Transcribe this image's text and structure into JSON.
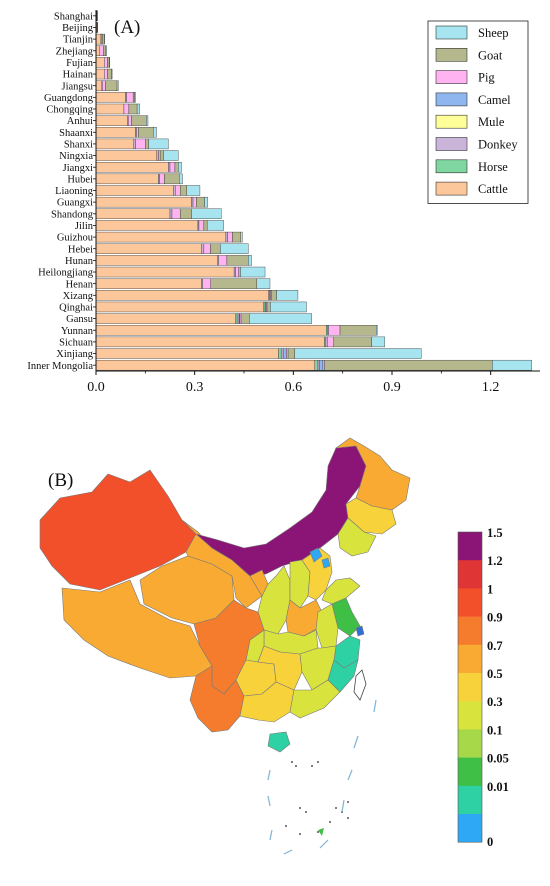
{
  "chart_data": [
    {
      "panel_label": "(A)",
      "type": "bar",
      "orientation": "horizontal",
      "stacked": true,
      "categories": [
        "Shanghai",
        "Beijing",
        "Tianjin",
        "Zhejiang",
        "Fujian",
        "Hainan",
        "Jiangsu",
        "Guangdong",
        "Chongqing",
        "Anhui",
        "Shaanxi",
        "Shanxi",
        "Ningxia",
        "Jiangxi",
        "Hubei",
        "Liaoning",
        "Guangxi",
        "Shandong",
        "Jilin",
        "Guizhou",
        "Hebei",
        "Hunan",
        "Heilongjiang",
        "Henan",
        "Xizang",
        "Qinghai",
        "Gansu",
        "Yunnan",
        "Sichuan",
        "Xinjiang",
        "Inner Mongolia"
      ],
      "series": [
        {
          "name": "Cattle",
          "color": "#fcc89b",
          "values": [
            0.002,
            0.003,
            0.015,
            0.01,
            0.025,
            0.025,
            0.018,
            0.09,
            0.085,
            0.095,
            0.12,
            0.115,
            0.185,
            0.22,
            0.19,
            0.235,
            0.29,
            0.225,
            0.31,
            0.395,
            0.32,
            0.37,
            0.42,
            0.32,
            0.525,
            0.51,
            0.425,
            0.7,
            0.695,
            0.555,
            0.665
          ]
        },
        {
          "name": "Horse",
          "color": "#7fd6a0",
          "values": [
            0,
            0,
            0,
            0,
            0,
            0,
            0,
            0,
            0,
            0,
            0,
            0,
            0,
            0,
            0,
            0,
            0,
            0,
            0,
            0,
            0,
            0,
            0,
            0,
            0.003,
            0.004,
            0.004,
            0.003,
            0.004,
            0.008,
            0.01
          ]
        },
        {
          "name": "Donkey",
          "color": "#cbb4da",
          "values": [
            0,
            0,
            0.001,
            0,
            0,
            0,
            0.001,
            0.003,
            0,
            0.003,
            0.004,
            0.005,
            0.005,
            0.005,
            0.003,
            0.006,
            0.005,
            0.006,
            0.003,
            0.005,
            0.008,
            0.003,
            0.004,
            0.004,
            0.003,
            0.003,
            0.006,
            0.004,
            0.004,
            0.006,
            0.005
          ]
        },
        {
          "name": "Mule",
          "color": "#ffff99",
          "values": [
            0,
            0,
            0,
            0,
            0,
            0,
            0,
            0,
            0,
            0,
            0,
            0,
            0,
            0,
            0,
            0,
            0,
            0,
            0,
            0,
            0,
            0,
            0,
            0,
            0,
            0,
            0,
            0,
            0,
            0,
            0
          ]
        },
        {
          "name": "Camel",
          "color": "#8fb6ef",
          "values": [
            0,
            0,
            0,
            0,
            0,
            0,
            0,
            0,
            0,
            0,
            0,
            0,
            0,
            0,
            0,
            0,
            0,
            0,
            0,
            0,
            0,
            0,
            0,
            0,
            0,
            0,
            0.002,
            0,
            0,
            0.01,
            0.01
          ]
        },
        {
          "name": "Pig",
          "color": "#ffb3f0",
          "values": [
            0.001,
            0.001,
            0.003,
            0.012,
            0.01,
            0.01,
            0.01,
            0.02,
            0.015,
            0.01,
            0.005,
            0.03,
            0.005,
            0.015,
            0.015,
            0.015,
            0.01,
            0.025,
            0.015,
            0.015,
            0.02,
            0.025,
            0.01,
            0.025,
            0.003,
            0.003,
            0.004,
            0.035,
            0.02,
            0.005,
            0.005
          ]
        },
        {
          "name": "Goat",
          "color": "#b4b88c",
          "values": [
            0.002,
            0.001,
            0.006,
            0.008,
            0.005,
            0.012,
            0.035,
            0.005,
            0.025,
            0.045,
            0.045,
            0.01,
            0.01,
            0.01,
            0.045,
            0.02,
            0.025,
            0.035,
            0.01,
            0.025,
            0.03,
            0.065,
            0.005,
            0.14,
            0.015,
            0.01,
            0.025,
            0.11,
            0.115,
            0.02,
            0.51
          ]
        },
        {
          "name": "Sheep",
          "color": "#a6e5ef",
          "values": [
            0,
            0,
            0.001,
            0.002,
            0.002,
            0.002,
            0.004,
            0.002,
            0.008,
            0.005,
            0.01,
            0.06,
            0.045,
            0.01,
            0.01,
            0.04,
            0.01,
            0.09,
            0.05,
            0.005,
            0.085,
            0.01,
            0.075,
            0.04,
            0.065,
            0.11,
            0.19,
            0.003,
            0.04,
            0.385,
            0.12
          ]
        }
      ],
      "xlim": [
        0,
        1.35
      ],
      "xticks": [
        "0.0",
        "0.3",
        "0.6",
        "0.9",
        "1.2"
      ],
      "legend_position": "top-right",
      "legend_order": [
        "Sheep",
        "Goat",
        "Pig",
        "Camel",
        "Mule",
        "Donkey",
        "Horse",
        "Cattle"
      ]
    },
    {
      "panel_label": "(B)",
      "type": "choropleth",
      "colorbar": {
        "labels": [
          "1.5",
          "1.2",
          "1",
          "0.9",
          "0.7",
          "0.5",
          "0.3",
          "0.1",
          "0.05",
          "0.01",
          "0"
        ],
        "colors": [
          "#8b1577",
          "#e03535",
          "#f2502b",
          "#f57c2c",
          "#f9aa32",
          "#f7d23a",
          "#d9e33d",
          "#a6d84a",
          "#3fbf45",
          "#2ed1a3",
          "#2ea8f5"
        ]
      },
      "regions": [
        {
          "name": "Xinjiang",
          "color": "#f2502b"
        },
        {
          "name": "Xizang",
          "color": "#f9aa32"
        },
        {
          "name": "Qinghai",
          "color": "#f9aa32"
        },
        {
          "name": "Gansu",
          "color": "#f9aa32"
        },
        {
          "name": "Inner Mongolia",
          "color": "#8b1577"
        },
        {
          "name": "Heilongjiang",
          "color": "#f9aa32"
        },
        {
          "name": "Jilin",
          "color": "#f7d23a"
        },
        {
          "name": "Liaoning",
          "color": "#d9e33d"
        },
        {
          "name": "Sichuan",
          "color": "#f57c2c"
        },
        {
          "name": "Yunnan",
          "color": "#f57c2c"
        },
        {
          "name": "Ningxia",
          "color": "#f9aa32"
        },
        {
          "name": "Shaanxi",
          "color": "#d9e33d"
        },
        {
          "name": "Shanxi",
          "color": "#d9e33d"
        },
        {
          "name": "Hebei",
          "color": "#f7d23a"
        },
        {
          "name": "Henan",
          "color": "#f9aa32"
        },
        {
          "name": "Shandong",
          "color": "#d9e33d"
        },
        {
          "name": "Chongqing",
          "color": "#d9e33d"
        },
        {
          "name": "Hubei",
          "color": "#d9e33d"
        },
        {
          "name": "Guizhou",
          "color": "#f7d23a"
        },
        {
          "name": "Hunan",
          "color": "#f7d23a"
        },
        {
          "name": "Guangxi",
          "color": "#f7d23a"
        },
        {
          "name": "Guangdong",
          "color": "#d9e33d"
        },
        {
          "name": "Jiangxi",
          "color": "#d9e33d"
        },
        {
          "name": "Anhui",
          "color": "#d9e33d"
        },
        {
          "name": "Jiangsu",
          "color": "#3fbf45"
        },
        {
          "name": "Zhejiang",
          "color": "#2ed1a3"
        },
        {
          "name": "Fujian",
          "color": "#2ed1a3"
        },
        {
          "name": "Hainan",
          "color": "#2ed1a3"
        },
        {
          "name": "Beijing",
          "color": "#2ea8f5"
        },
        {
          "name": "Tianjin",
          "color": "#2ea8f5"
        },
        {
          "name": "Shanghai",
          "color": "#2e6fd6"
        }
      ]
    }
  ]
}
